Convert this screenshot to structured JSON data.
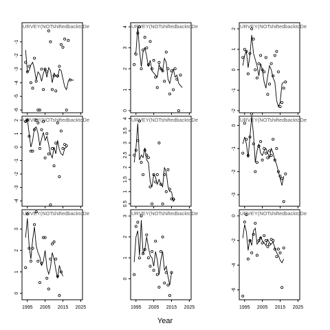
{
  "chart_data": {
    "type": "scatter",
    "xlabel": "Year",
    "x_ticks": [
      1995,
      2005,
      2015,
      2025
    ],
    "xlim": [
      1992,
      2026
    ],
    "panels": [
      {
        "title": "URVEY(NOTshiftedbacktoDe",
        "ylim": [
          -6.2,
          0.4
        ],
        "yticks": [
          -6,
          -5,
          -4,
          -3,
          -2,
          -1
        ],
        "years": [
          1994,
          1995,
          1996,
          1997,
          1998,
          1999,
          2000,
          2001,
          2002,
          2003,
          2004,
          2005,
          2006,
          2007,
          2008,
          2009,
          2010,
          2011,
          2012,
          2013,
          2014,
          2015,
          2016,
          2017,
          2018,
          2019,
          2020,
          2021,
          2022,
          2023
        ],
        "observed": [
          -2.5,
          -3.2,
          -2.8,
          -4.0,
          -4.4,
          -2.2,
          -3.9,
          -6.0,
          -6.0,
          -3.0,
          -4.5,
          -3.0,
          -3.2,
          -0.2,
          -1.0,
          -4.5,
          -3.5,
          -4.6,
          -3.5,
          -2.8,
          -1.2,
          -1.4,
          -0.8,
          -6.0,
          -0.9,
          -3.8,
          null,
          null,
          null,
          null
        ],
        "fitted": [
          -1.6,
          -3.2,
          -3.1,
          -2.7,
          -2.5,
          -3.0,
          -3.8,
          -3.2,
          -3.4,
          -3.9,
          -3.3,
          -3.0,
          -3.6,
          -2.9,
          -3.1,
          -4.0,
          -3.3,
          -3.5,
          -3.6,
          -3.0,
          -3.1,
          -3.7,
          -4.3,
          -4.5,
          -3.9,
          -3.7,
          -3.8,
          -3.8,
          null,
          null
        ]
      },
      {
        "title": "URVEY(NOTshiftedbacktoDe",
        "ylim": [
          -0.1,
          4.2
        ],
        "yticks": [
          0,
          1,
          2,
          3,
          4
        ],
        "years": [
          1994,
          1995,
          1996,
          1997,
          1998,
          1999,
          2000,
          2001,
          2002,
          2003,
          2004,
          2005,
          2006,
          2007,
          2008,
          2009,
          2010,
          2011,
          2012,
          2013,
          2014,
          2015,
          2016,
          2017,
          2018,
          2019,
          2020,
          2021,
          2022,
          2023
        ],
        "observed": [
          2.2,
          2.7,
          3.7,
          4.0,
          2.0,
          2.9,
          3.5,
          3.0,
          2.2,
          3.3,
          2.0,
          2.4,
          1.6,
          1.1,
          2.3,
          2.0,
          1.9,
          1.4,
          2.8,
          2.0,
          0.8,
          1.9,
          1.0,
          2.0,
          1.5,
          0.0,
          1.7,
          null,
          null,
          null
        ],
        "fitted": [
          2.7,
          2.8,
          4.0,
          2.9,
          2.1,
          2.8,
          3.0,
          2.6,
          2.1,
          2.4,
          1.9,
          1.8,
          1.7,
          1.6,
          2.2,
          2.0,
          1.9,
          2.5,
          2.3,
          1.5,
          1.3,
          1.7,
          2.0,
          1.6,
          1.7,
          1.3,
          1.2,
          1.1,
          null,
          null
        ]
      },
      {
        "title": "URVEY(NOTshiftedbacktoDe",
        "ylim": [
          -2.1,
          2.3
        ],
        "yticks": [
          -2,
          -1,
          0,
          1,
          2
        ],
        "years": [
          1994,
          1995,
          1996,
          1997,
          1998,
          1999,
          2000,
          2001,
          2002,
          2003,
          2004,
          2005,
          2006,
          2007,
          2008,
          2009,
          2010,
          2011,
          2012,
          2013,
          2014,
          2015,
          2016,
          2017,
          2018,
          2019,
          2020,
          2021,
          2022,
          2023
        ],
        "observed": [
          0.6,
          1.0,
          0.9,
          -0.2,
          0.8,
          2.0,
          1.5,
          0.0,
          -0.4,
          0.3,
          0.7,
          0.0,
          -0.1,
          0.6,
          -1.2,
          -0.7,
          0.3,
          -0.3,
          0.7,
          0.9,
          -0.1,
          -1.8,
          -1.6,
          -0.9,
          -0.6,
          null,
          null,
          null,
          null,
          null
        ],
        "fitted": [
          0.2,
          0.7,
          0.9,
          0.1,
          0.7,
          1.7,
          0.8,
          0.5,
          0.2,
          -0.3,
          0.3,
          0.0,
          -0.6,
          -0.9,
          -0.3,
          0.2,
          0.0,
          -0.4,
          -0.6,
          -1.5,
          -1.8,
          -1.6,
          -0.7,
          -0.6,
          null,
          null,
          null,
          null,
          null,
          null
        ]
      },
      {
        "title": "URVEY(NOTshiftedbacktoDe",
        "ylim": [
          -4.4,
          2.3
        ],
        "yticks": [
          -4,
          -3,
          -2,
          -1,
          0,
          1,
          2
        ],
        "years": [
          1994,
          1995,
          1996,
          1997,
          1998,
          1999,
          2000,
          2001,
          2002,
          2003,
          2004,
          2005,
          2006,
          2007,
          2008,
          2009,
          2010,
          2011,
          2012,
          2013,
          2014,
          2015,
          2016,
          2017,
          2018,
          2019,
          2020,
          2021,
          2022,
          2023
        ],
        "observed": [
          1.9,
          2.0,
          0.8,
          -0.3,
          -0.3,
          1.3,
          2.0,
          1.8,
          -0.1,
          1.3,
          1.9,
          -0.8,
          1.0,
          -0.5,
          -4.3,
          -0.1,
          -1.4,
          0.3,
          1.8,
          -2.2,
          1.2,
          -0.1,
          0.2,
          0.1,
          null,
          null,
          null,
          null,
          null,
          null
        ],
        "fitted": [
          1.8,
          2.1,
          1.0,
          0.0,
          0.5,
          1.4,
          1.5,
          1.0,
          0.1,
          0.6,
          1.1,
          0.5,
          0.8,
          0.2,
          -0.5,
          -0.8,
          0.0,
          -0.5,
          0.5,
          -0.2,
          -0.5,
          -0.6,
          -0.1,
          0.0,
          null,
          null,
          null,
          null,
          null,
          null
        ]
      },
      {
        "title": "URVEY(NOTshiftedbacktoDe",
        "ylim": [
          0.4,
          4.1
        ],
        "yticks": [
          0.5,
          1.0,
          1.5,
          2.0,
          2.5,
          3.0,
          3.5,
          4.0
        ],
        "years": [
          1994,
          1995,
          1996,
          1997,
          1998,
          1999,
          2000,
          2001,
          2002,
          2003,
          2004,
          2005,
          2006,
          2007,
          2008,
          2009,
          2010,
          2011,
          2012,
          2013,
          2014,
          2015,
          2016,
          2017,
          2018,
          2019,
          2020,
          2021,
          2022,
          2023
        ],
        "observed": [
          2.5,
          2.7,
          3.1,
          3.9,
          2.2,
          1.7,
          2.7,
          2.5,
          2.4,
          1.2,
          0.5,
          1.7,
          1.4,
          1.7,
          3.0,
          1.3,
          0.5,
          1.7,
          1.0,
          1.9,
          1.1,
          0.7,
          0.7,
          null,
          null,
          null,
          null,
          null,
          null,
          null
        ],
        "fitted": [
          2.2,
          2.8,
          3.8,
          2.3,
          2.5,
          2.4,
          2.8,
          2.3,
          2.2,
          1.4,
          1.2,
          1.7,
          1.6,
          1.3,
          1.5,
          1.3,
          1.2,
          2.0,
          1.8,
          1.2,
          1.0,
          1.0,
          0.6,
          0.7,
          null,
          null,
          null,
          null,
          null,
          null
        ]
      },
      {
        "title": "URVEY(NOTshiftedbacktoDe",
        "ylim": [
          -3.5,
          0.4
        ],
        "yticks": [
          -3,
          -2,
          -1,
          0
        ],
        "years": [
          1994,
          1995,
          1996,
          1997,
          1998,
          1999,
          2000,
          2001,
          2002,
          2003,
          2004,
          2005,
          2006,
          2007,
          2008,
          2009,
          2010,
          2011,
          2012,
          2013,
          2014,
          2015,
          2016,
          2017,
          2018,
          2019,
          2020,
          2021,
          2022,
          2023
        ],
        "observed": [
          -1.2,
          0.1,
          -0.6,
          -1.3,
          -0.5,
          0.5,
          -0.8,
          -2.0,
          -1.6,
          -0.9,
          -0.7,
          -1.5,
          -1.0,
          -1.2,
          -1.4,
          -1.1,
          -1.3,
          -0.6,
          -1.5,
          -1.0,
          -2.0,
          -2.2,
          -2.3,
          -3.3,
          -2.1,
          null,
          null,
          null,
          null,
          null
        ],
        "fitted": [
          -0.8,
          -0.5,
          -0.8,
          -1.4,
          -0.5,
          0.4,
          -0.4,
          -1.6,
          -1.1,
          -0.8,
          -1.2,
          -1.3,
          -1.1,
          -1.0,
          -1.2,
          -1.4,
          -1.0,
          -1.2,
          -1.5,
          -1.7,
          -2.0,
          -2.3,
          -2.6,
          -2.2,
          null,
          null,
          null,
          null,
          null,
          null
        ]
      },
      {
        "title": "URVEY(NOTshiftedbacktoDe",
        "ylim": [
          -0.3,
          3.9
        ],
        "yticks": [
          0,
          1,
          2,
          3
        ],
        "years": [
          1994,
          1995,
          1996,
          1997,
          1998,
          1999,
          2000,
          2001,
          2002,
          2003,
          2004,
          2005,
          2006,
          2007,
          2008,
          2009,
          2010,
          2011,
          2012,
          2013,
          2014,
          2015,
          2016,
          2017,
          2018,
          2019,
          2020,
          2021,
          2022,
          2023
        ],
        "observed": [
          1.2,
          3.7,
          2.1,
          1.5,
          2.1,
          3.2,
          3.8,
          1.5,
          0.5,
          1.4,
          2.6,
          2.6,
          0.7,
          0.2,
          1.6,
          2.3,
          2.4,
          1.6,
          0.8,
          -0.1,
          1.0,
          null,
          null,
          null,
          null,
          null,
          null,
          null,
          null,
          null
        ],
        "fitted": [
          2.6,
          3.5,
          2.2,
          1.6,
          2.5,
          3.1,
          2.2,
          1.9,
          1.7,
          1.3,
          1.5,
          2.0,
          1.2,
          0.9,
          1.2,
          1.9,
          1.6,
          1.1,
          0.7,
          1.3,
          1.0,
          0.8,
          null,
          null,
          null,
          null,
          null,
          null,
          null,
          null
        ]
      },
      {
        "title": "URVEY(NOTshiftedbacktoDe",
        "ylim": [
          -1,
          3.3
        ],
        "yticks": [
          0,
          1,
          2,
          3
        ],
        "years": [
          1994,
          1995,
          1996,
          1997,
          1998,
          1999,
          2000,
          2001,
          2002,
          2003,
          2004,
          2005,
          2006,
          2007,
          2008,
          2009,
          2010,
          2011,
          2012,
          2013,
          2014,
          2015,
          2016,
          2017,
          2018,
          2019,
          2020,
          2021,
          2022,
          2023
        ],
        "observed": [
          0.2,
          2.5,
          2.7,
          1.0,
          3.0,
          1.2,
          1.4,
          2.1,
          1.0,
          0.6,
          1.3,
          0.4,
          1.8,
          0.2,
          -0.4,
          1.3,
          2.0,
          -0.2,
          0.3,
          -0.3,
          -0.8,
          0.3,
          null,
          null,
          null,
          null,
          null,
          null,
          null,
          null
        ],
        "fitted": [
          0.8,
          2.0,
          2.3,
          1.1,
          2.8,
          1.2,
          1.4,
          2.0,
          1.5,
          1.1,
          1.0,
          0.6,
          1.3,
          0.9,
          0.2,
          0.9,
          1.3,
          0.4,
          0.6,
          0.1,
          -0.3,
          0.3,
          null,
          null,
          null,
          null,
          null,
          null,
          null,
          null
        ]
      },
      {
        "title": "URVEY(NOTshiftedbacktoDe",
        "ylim": [
          -6.8,
          0.5
        ],
        "yticks": [
          -6,
          -4,
          -2,
          0
        ],
        "years": [
          1994,
          1995,
          1996,
          1997,
          1998,
          1999,
          2000,
          2001,
          2002,
          2003,
          2004,
          2005,
          2006,
          2007,
          2008,
          2009,
          2010,
          2011,
          2012,
          2013,
          2014,
          2015,
          2016,
          2017,
          2018,
          2019,
          2020,
          2021,
          2022,
          2023
        ],
        "observed": [
          -6.5,
          -0.5,
          0.1,
          -3.5,
          -2.0,
          -3.0,
          -1.5,
          -0.6,
          -3.2,
          -2.0,
          -1.8,
          -2.2,
          -1.6,
          -2.0,
          -2.5,
          -2.3,
          -1.9,
          -2.0,
          -2.7,
          -3.3,
          -2.7,
          -3.0,
          -5.8,
          -2.6,
          null,
          null,
          null,
          null,
          null,
          null
        ],
        "fitted": [
          -1.8,
          -0.7,
          -1.3,
          -2.8,
          -1.9,
          -2.4,
          -1.2,
          -1.0,
          -2.3,
          -2.1,
          -1.7,
          -2.0,
          -2.2,
          -2.4,
          -1.9,
          -2.2,
          -2.3,
          -2.1,
          -2.6,
          -3.0,
          -3.2,
          -3.6,
          -3.8,
          -3.5,
          null,
          null,
          null,
          null,
          null,
          null
        ]
      }
    ]
  }
}
